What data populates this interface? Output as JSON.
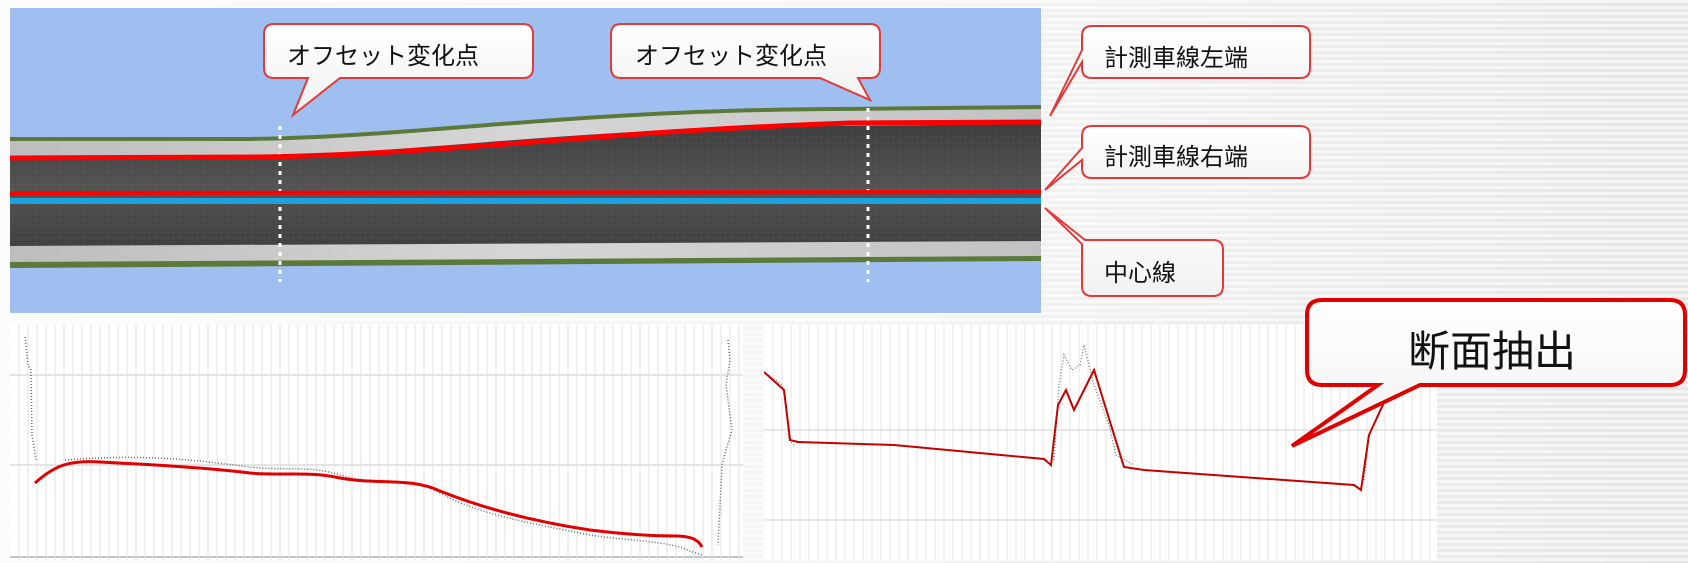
{
  "callouts": {
    "offset_left": "オフセット変化点",
    "offset_right": "オフセット変化点",
    "measure_left_edge": "計測車線左端",
    "measure_right_edge": "計測車線右端",
    "center_line": "中心線",
    "section_extract": "断面抽出"
  },
  "colors": {
    "sky": "#9ebff0",
    "asphalt": "#4a4a4a",
    "measure_line": "#ff0000",
    "center_line": "#1aa3e0",
    "callout_border": "#e23a3a"
  }
}
